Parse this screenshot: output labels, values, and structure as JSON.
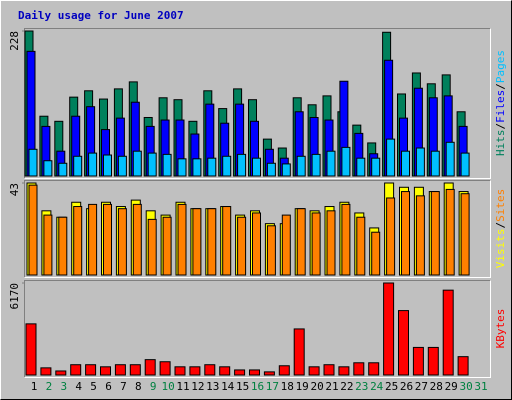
{
  "chart_data": {
    "type": "bar",
    "title": "Daily usage for June 2007",
    "categories": [
      "1",
      "2",
      "3",
      "4",
      "5",
      "6",
      "7",
      "8",
      "9",
      "10",
      "11",
      "12",
      "13",
      "14",
      "15",
      "16",
      "17",
      "18",
      "19",
      "20",
      "21",
      "22",
      "23",
      "24",
      "25",
      "26",
      "27",
      "28",
      "29",
      "30",
      "31"
    ],
    "category_colors": [
      "#000000",
      "#008040",
      "#008040",
      "#000000",
      "#000000",
      "#000000",
      "#000000",
      "#000000",
      "#008040",
      "#008040",
      "#000000",
      "#000000",
      "#000000",
      "#000000",
      "#000000",
      "#008040",
      "#008040",
      "#000000",
      "#000000",
      "#000000",
      "#000000",
      "#000000",
      "#008040",
      "#008040",
      "#000000",
      "#000000",
      "#000000",
      "#000000",
      "#000000",
      "#008040",
      "#008040"
    ],
    "legend_separator": "/",
    "panels": [
      {
        "ylim": [
          0,
          228
        ],
        "yticks": [
          228
        ],
        "series": [
          {
            "name": "Hits",
            "color": "#00805c",
            "values": [
              228,
              94,
              86,
              124,
              134,
              121,
              137,
              148,
              92,
              123,
              120,
              86,
              134,
              106,
              137,
              120,
              58,
              44,
              123,
              112,
              126,
              101,
              80,
              52,
              226,
              129,
              162,
              145,
              159,
              101,
              null
            ]
          },
          {
            "name": "Files",
            "color": "#0000ff",
            "values": [
              196,
              78,
              39,
              94,
              109,
              73,
              91,
              116,
              78,
              88,
              88,
              66,
              113,
              83,
              113,
              86,
              42,
              28,
              101,
              92,
              88,
              149,
              67,
              35,
              182,
              91,
              138,
              123,
              126,
              78,
              null
            ]
          },
          {
            "name": "Pages",
            "color": "#00c0ff",
            "values": [
              42,
              24,
              20,
              31,
              36,
              33,
              31,
              39,
              36,
              34,
              27,
              27,
              28,
              31,
              34,
              28,
              20,
              19,
              31,
              34,
              39,
              45,
              28,
              28,
              58,
              39,
              44,
              39,
              53,
              36,
              null
            ]
          }
        ]
      },
      {
        "ylim": [
          0,
          43
        ],
        "yticks": [
          43
        ],
        "series": [
          {
            "name": "Visits",
            "color": "#ffff00",
            "values": [
              43,
              30,
              27,
              34,
              31,
              34,
              32,
              35,
              30,
              28,
              34,
              31,
              31,
              32,
              28,
              30,
              24,
              24,
              31,
              30,
              32,
              34,
              29,
              22,
              43,
              41,
              41,
              39,
              43,
              39,
              null
            ]
          },
          {
            "name": "Sites",
            "color": "#ff8000",
            "values": [
              42,
              28,
              27,
              32,
              33,
              33,
              31,
              33,
              26,
              27,
              33,
              31,
              31,
              32,
              27,
              29,
              23,
              28,
              31,
              29,
              30,
              33,
              27,
              20,
              36,
              39,
              37,
              39,
              40,
              38,
              null
            ]
          }
        ]
      },
      {
        "ylim": [
          0,
          6170
        ],
        "yticks": [
          6170
        ],
        "series": [
          {
            "name": "KBytes",
            "color": "#ff0000",
            "values": [
              3430,
              480,
              270,
              690,
              690,
              550,
              690,
              690,
              1030,
              890,
              550,
              550,
              690,
              550,
              340,
              340,
              210,
              620,
              3090,
              550,
              690,
              550,
              820,
              820,
              6170,
              4320,
              1850,
              1850,
              5690,
              1230,
              null
            ]
          }
        ]
      }
    ]
  }
}
